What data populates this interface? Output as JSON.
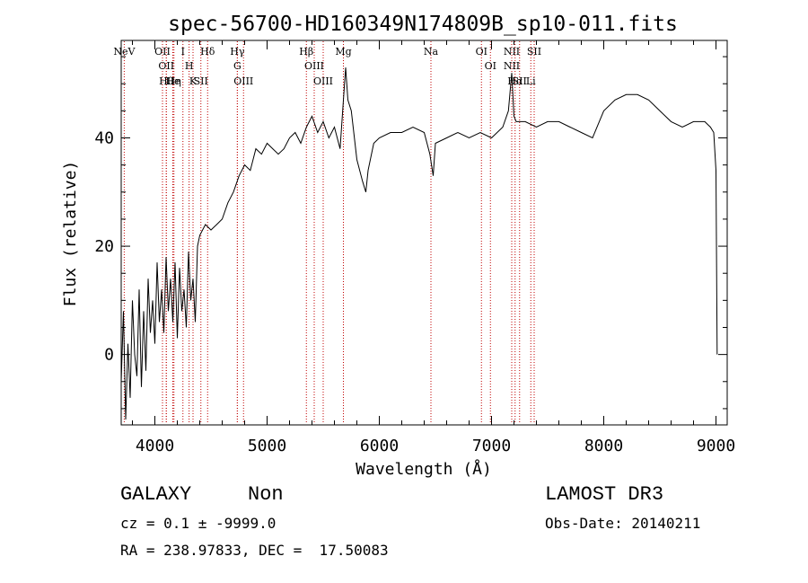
{
  "chart_data": {
    "type": "line",
    "title": "spec-56700-HD160349N174809B_sp10-011.fits",
    "xlabel": "Wavelength (Å)",
    "ylabel": "Flux (relative)",
    "xlim": [
      3700,
      9100
    ],
    "ylim": [
      -13,
      58
    ],
    "xticks": [
      4000,
      5000,
      6000,
      7000,
      8000,
      9000
    ],
    "yticks": [
      0,
      20,
      40
    ],
    "grid": false,
    "line_color": "#000000",
    "marker_color": "#c00000",
    "series": [
      {
        "x": [
          3700,
          3720,
          3740,
          3760,
          3780,
          3800,
          3820,
          3840,
          3860,
          3880,
          3900,
          3920,
          3940,
          3960,
          3980,
          4000,
          4020,
          4040,
          4060,
          4080,
          4100,
          4120,
          4140,
          4160,
          4180,
          4200,
          4220,
          4240,
          4260,
          4280,
          4300,
          4320,
          4340,
          4360,
          4380,
          4400,
          4450,
          4500,
          4550,
          4600,
          4650,
          4700,
          4750,
          4800,
          4850,
          4900,
          4950,
          5000,
          5050,
          5100,
          5150,
          5200,
          5250,
          5300,
          5350,
          5400,
          5450,
          5500,
          5550,
          5600,
          5650,
          5700,
          5720,
          5750,
          5800,
          5850,
          5880,
          5900,
          5950,
          6000,
          6100,
          6200,
          6300,
          6400,
          6450,
          6480,
          6500,
          6600,
          6700,
          6800,
          6900,
          7000,
          7100,
          7150,
          7180,
          7200,
          7220,
          7300,
          7400,
          7500,
          7600,
          7700,
          7800,
          7900,
          8000,
          8100,
          8200,
          8300,
          8400,
          8500,
          8600,
          8700,
          8800,
          8900,
          8950,
          8980,
          9000,
          9010
        ],
        "y": [
          -5,
          8,
          -12,
          2,
          -8,
          10,
          0,
          -4,
          12,
          -6,
          8,
          -3,
          14,
          4,
          10,
          2,
          17,
          6,
          12,
          4,
          18,
          8,
          14,
          6,
          17,
          3,
          16,
          8,
          12,
          5,
          19,
          10,
          14,
          6,
          20,
          22,
          24,
          23,
          24,
          25,
          28,
          30,
          33,
          35,
          34,
          38,
          37,
          39,
          38,
          37,
          38,
          40,
          41,
          39,
          42,
          44,
          41,
          43,
          40,
          42,
          38,
          53,
          47,
          45,
          36,
          32,
          30,
          34,
          39,
          40,
          41,
          41,
          42,
          41,
          37,
          33,
          39,
          40,
          41,
          40,
          41,
          40,
          42,
          45,
          52,
          44,
          43,
          43,
          42,
          43,
          43,
          42,
          41,
          40,
          45,
          47,
          48,
          48,
          47,
          45,
          43,
          42,
          43,
          43,
          42,
          41,
          34,
          0
        ]
      }
    ],
    "line_markers": [
      {
        "wl": 3727,
        "label": "NeV"
      },
      {
        "wl": 4068,
        "label": "OII"
      },
      {
        "wl": 4102,
        "label": "OII"
      },
      {
        "wl": 4102,
        "label": "Hθ"
      },
      {
        "wl": 4160,
        "label": "He"
      },
      {
        "wl": 4170,
        "label": "Hη"
      },
      {
        "wl": 4250,
        "label": "I"
      },
      {
        "wl": 4305,
        "label": "H"
      },
      {
        "wl": 4340,
        "label": "K"
      },
      {
        "wl": 4410,
        "label": "SII"
      },
      {
        "wl": 4470,
        "label": "Hδ"
      },
      {
        "wl": 4735,
        "label": "Hγ"
      },
      {
        "wl": 4735,
        "label": "G"
      },
      {
        "wl": 4790,
        "label": "OIII"
      },
      {
        "wl": 5350,
        "label": "Hβ"
      },
      {
        "wl": 5420,
        "label": "OIII"
      },
      {
        "wl": 5500,
        "label": "OIII"
      },
      {
        "wl": 5680,
        "label": "Mg"
      },
      {
        "wl": 6460,
        "label": "Na"
      },
      {
        "wl": 6910,
        "label": "OI"
      },
      {
        "wl": 6990,
        "label": "OI"
      },
      {
        "wl": 7180,
        "label": "NII"
      },
      {
        "wl": 7180,
        "label": "NII"
      },
      {
        "wl": 7210,
        "label": "Hα"
      },
      {
        "wl": 7250,
        "label": "SII"
      },
      {
        "wl": 7350,
        "label": "Li"
      },
      {
        "wl": 7380,
        "label": "SII"
      }
    ]
  },
  "info": {
    "class": "GALAXY",
    "subclass": "Non",
    "survey": "LAMOST DR3",
    "cz": "cz = 0.1 ± -9999.0",
    "obs_date": "Obs-Date: 20140211",
    "radec": "RA = 238.97833, DEC =  17.50083"
  }
}
